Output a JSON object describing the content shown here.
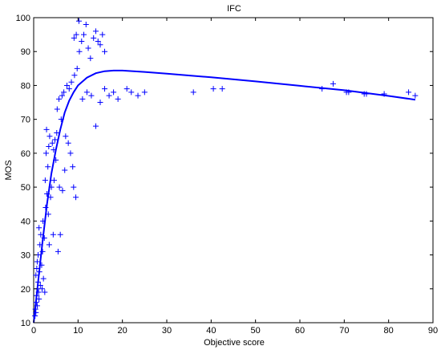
{
  "chart_data": {
    "type": "scatter",
    "title": "IFC",
    "xlabel": "Objective score",
    "ylabel": "MOS",
    "xlim": [
      0,
      90
    ],
    "ylim": [
      10,
      100
    ],
    "xticks": [
      0,
      10,
      20,
      30,
      40,
      50,
      60,
      70,
      80,
      90
    ],
    "yticks": [
      10,
      20,
      30,
      40,
      50,
      60,
      70,
      80,
      90,
      100
    ],
    "grid": false,
    "legend": "none",
    "colors": {
      "series": "#0000ff",
      "axes": "#000000",
      "background": "#ffffff"
    },
    "series": [
      {
        "marker": "plus",
        "points": [
          [
            0.3,
            12
          ],
          [
            0.4,
            14
          ],
          [
            0.5,
            13
          ],
          [
            0.6,
            16
          ],
          [
            0.7,
            18
          ],
          [
            0.8,
            15
          ],
          [
            0.9,
            20
          ],
          [
            1.0,
            22
          ],
          [
            0.5,
            24
          ],
          [
            0.7,
            26
          ],
          [
            1.1,
            19
          ],
          [
            1.2,
            17
          ],
          [
            0.8,
            28
          ],
          [
            1.0,
            30
          ],
          [
            1.3,
            25
          ],
          [
            1.4,
            33
          ],
          [
            1.5,
            21
          ],
          [
            1.6,
            36
          ],
          [
            1.2,
            38
          ],
          [
            1.8,
            27
          ],
          [
            2.0,
            31
          ],
          [
            1.9,
            20
          ],
          [
            2.2,
            23
          ],
          [
            2.4,
            35
          ],
          [
            2.1,
            40
          ],
          [
            2.5,
            19
          ],
          [
            2.7,
            44
          ],
          [
            3.0,
            48
          ],
          [
            2.6,
            52
          ],
          [
            3.2,
            56
          ],
          [
            2.8,
            60
          ],
          [
            3.5,
            33
          ],
          [
            3.3,
            42
          ],
          [
            3.8,
            47
          ],
          [
            4.0,
            50
          ],
          [
            3.6,
            65
          ],
          [
            4.2,
            63
          ],
          [
            2.9,
            67
          ],
          [
            3.4,
            62
          ],
          [
            4.5,
            61
          ],
          [
            4.8,
            64
          ],
          [
            5.0,
            58
          ],
          [
            5.2,
            66
          ],
          [
            4.4,
            36
          ],
          [
            5.5,
            31
          ],
          [
            6.0,
            36
          ],
          [
            4.6,
            52
          ],
          [
            5.8,
            50
          ],
          [
            6.5,
            49
          ],
          [
            7.0,
            55
          ],
          [
            6.2,
            70
          ],
          [
            5.3,
            73
          ],
          [
            5.7,
            76
          ],
          [
            6.4,
            77
          ],
          [
            6.8,
            78
          ],
          [
            7.5,
            80
          ],
          [
            8.0,
            79
          ],
          [
            8.5,
            81
          ],
          [
            7.2,
            65
          ],
          [
            7.8,
            63
          ],
          [
            8.3,
            60
          ],
          [
            8.8,
            56
          ],
          [
            9.0,
            50
          ],
          [
            9.5,
            47
          ],
          [
            9.2,
            83
          ],
          [
            9.8,
            85
          ],
          [
            10.3,
            90
          ],
          [
            9.1,
            94
          ],
          [
            9.6,
            95
          ],
          [
            10.2,
            99
          ],
          [
            10.8,
            93
          ],
          [
            11.3,
            95
          ],
          [
            11.8,
            98
          ],
          [
            12.3,
            91
          ],
          [
            12.8,
            88
          ],
          [
            13.5,
            94
          ],
          [
            14.0,
            96
          ],
          [
            14.5,
            93
          ],
          [
            15.0,
            92
          ],
          [
            15.5,
            95
          ],
          [
            16.0,
            90
          ],
          [
            11.0,
            76
          ],
          [
            12.0,
            78
          ],
          [
            13.0,
            77
          ],
          [
            14.0,
            68
          ],
          [
            15.0,
            75
          ],
          [
            16.0,
            79
          ],
          [
            17.0,
            77
          ],
          [
            18.0,
            78
          ],
          [
            19.0,
            76
          ],
          [
            21.0,
            79
          ],
          [
            22.0,
            78
          ],
          [
            23.5,
            77
          ],
          [
            25.0,
            78
          ],
          [
            36.0,
            78
          ],
          [
            40.5,
            79
          ],
          [
            42.5,
            79
          ],
          [
            65.0,
            79
          ],
          [
            67.5,
            80.5
          ],
          [
            70.5,
            78
          ],
          [
            71.0,
            78
          ],
          [
            74.5,
            77.5
          ],
          [
            75.0,
            77.5
          ],
          [
            79.0,
            77.5
          ],
          [
            84.5,
            78
          ],
          [
            86.0,
            77
          ]
        ]
      },
      {
        "marker": "none",
        "line": "fit",
        "points": [
          [
            0,
            10
          ],
          [
            1,
            22
          ],
          [
            2,
            34
          ],
          [
            3,
            45
          ],
          [
            4,
            54
          ],
          [
            5,
            61
          ],
          [
            6,
            67
          ],
          [
            7,
            72
          ],
          [
            8,
            75.5
          ],
          [
            9,
            78
          ],
          [
            10,
            80
          ],
          [
            12,
            82.3
          ],
          [
            14,
            83.6
          ],
          [
            16,
            84.2
          ],
          [
            18,
            84.4
          ],
          [
            20,
            84.4
          ],
          [
            25,
            84
          ],
          [
            30,
            83.5
          ],
          [
            40,
            82.4
          ],
          [
            50,
            81.2
          ],
          [
            60,
            79.9
          ],
          [
            70,
            78.6
          ],
          [
            80,
            76.9
          ],
          [
            86,
            75.8
          ]
        ]
      }
    ]
  }
}
